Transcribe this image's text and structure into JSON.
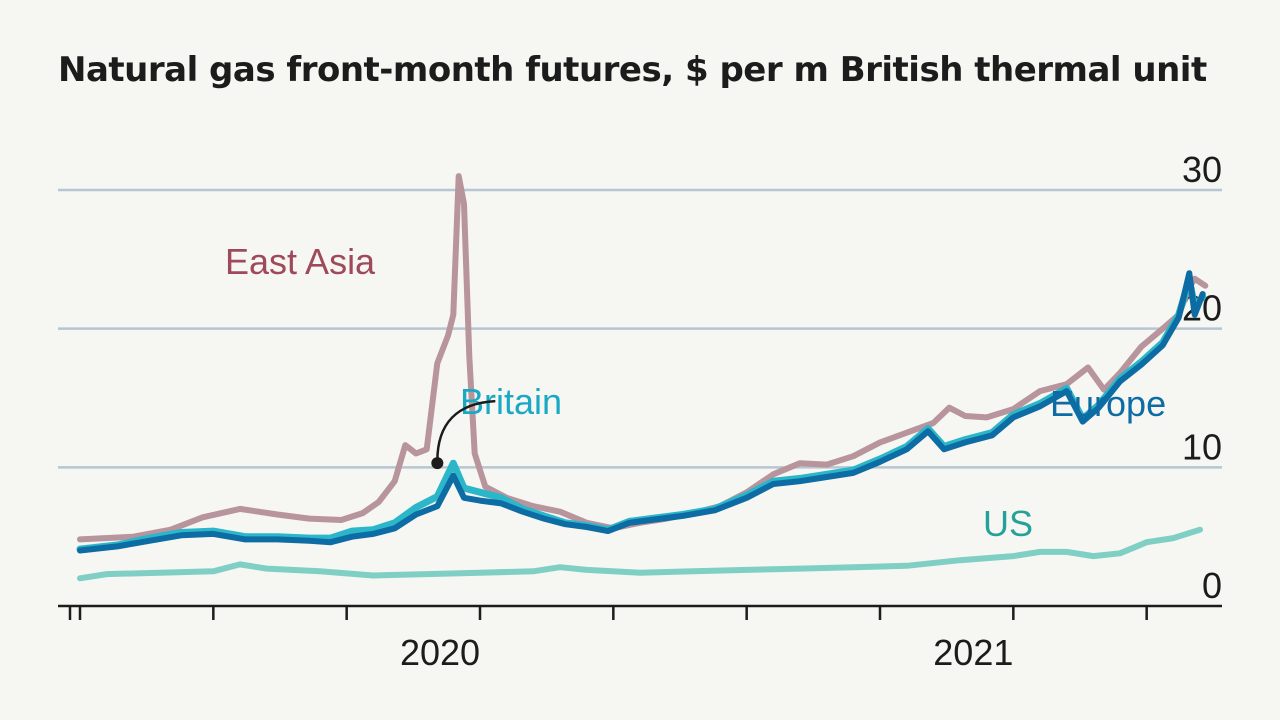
{
  "chart_data": {
    "type": "line",
    "title": "Natural gas front-month futures, $ per m British thermal unit",
    "xlabel": "",
    "ylabel": "",
    "ylim": [
      0,
      30
    ],
    "yticks": [
      "0",
      "10",
      "20",
      "30"
    ],
    "x_tick_labels": [
      "2020",
      "2021"
    ],
    "grid": true,
    "annotation": {
      "series": "Britain",
      "x": 2020.42,
      "y": 10.3
    },
    "colors": {
      "East Asia": "#b8949d",
      "Britain": "#2bb6c9",
      "Europe": "#0c6ca3",
      "US": "#7fcfc4"
    },
    "label_colors": {
      "East Asia": "#9e4a5b",
      "Britain": "#1aa9c4",
      "Europe": "#0c6ca3",
      "US": "#24a29a"
    },
    "series": [
      {
        "name": "East Asia",
        "points": [
          [
            2019.75,
            4.8
          ],
          [
            2019.85,
            5.0
          ],
          [
            2019.92,
            5.5
          ],
          [
            2019.98,
            6.4
          ],
          [
            2020.05,
            7.0
          ],
          [
            2020.12,
            6.6
          ],
          [
            2020.18,
            6.3
          ],
          [
            2020.24,
            6.2
          ],
          [
            2020.28,
            6.7
          ],
          [
            2020.31,
            7.5
          ],
          [
            2020.34,
            9.0
          ],
          [
            2020.36,
            11.6
          ],
          [
            2020.38,
            11.0
          ],
          [
            2020.4,
            11.3
          ],
          [
            2020.42,
            17.5
          ],
          [
            2020.44,
            19.5
          ],
          [
            2020.45,
            21
          ],
          [
            2020.46,
            31
          ],
          [
            2020.47,
            29
          ],
          [
            2020.48,
            18
          ],
          [
            2020.49,
            11
          ],
          [
            2020.51,
            8.6
          ],
          [
            2020.55,
            7.8
          ],
          [
            2020.6,
            7.2
          ],
          [
            2020.65,
            6.8
          ],
          [
            2020.7,
            6.0
          ],
          [
            2020.75,
            5.6
          ],
          [
            2020.8,
            6.0
          ],
          [
            2020.85,
            6.3
          ],
          [
            2020.9,
            6.7
          ],
          [
            2020.95,
            7.2
          ],
          [
            2021.0,
            8.2
          ],
          [
            2021.05,
            9.5
          ],
          [
            2021.1,
            10.3
          ],
          [
            2021.15,
            10.2
          ],
          [
            2021.2,
            10.8
          ],
          [
            2021.25,
            11.8
          ],
          [
            2021.3,
            12.5
          ],
          [
            2021.35,
            13.2
          ],
          [
            2021.38,
            14.3
          ],
          [
            2021.41,
            13.7
          ],
          [
            2021.45,
            13.6
          ],
          [
            2021.5,
            14.2
          ],
          [
            2021.55,
            15.5
          ],
          [
            2021.6,
            16.0
          ],
          [
            2021.64,
            17.2
          ],
          [
            2021.67,
            15.6
          ],
          [
            2021.7,
            16.8
          ],
          [
            2021.74,
            18.7
          ],
          [
            2021.78,
            20.0
          ],
          [
            2021.81,
            21.0
          ],
          [
            2021.83,
            23.0
          ],
          [
            2021.84,
            23.6
          ],
          [
            2021.86,
            23.1
          ]
        ]
      },
      {
        "name": "Britain",
        "points": [
          [
            2019.75,
            4.1
          ],
          [
            2019.82,
            4.4
          ],
          [
            2019.88,
            4.9
          ],
          [
            2019.94,
            5.3
          ],
          [
            2020.0,
            5.4
          ],
          [
            2020.06,
            5.0
          ],
          [
            2020.12,
            5.0
          ],
          [
            2020.18,
            4.9
          ],
          [
            2020.22,
            4.9
          ],
          [
            2020.26,
            5.4
          ],
          [
            2020.3,
            5.5
          ],
          [
            2020.34,
            6.0
          ],
          [
            2020.38,
            7.1
          ],
          [
            2020.42,
            7.9
          ],
          [
            2020.45,
            10.3
          ],
          [
            2020.47,
            8.5
          ],
          [
            2020.5,
            8.2
          ],
          [
            2020.54,
            7.8
          ],
          [
            2020.58,
            7.0
          ],
          [
            2020.62,
            6.5
          ],
          [
            2020.66,
            6.0
          ],
          [
            2020.7,
            5.8
          ],
          [
            2020.74,
            5.5
          ],
          [
            2020.78,
            6.1
          ],
          [
            2020.82,
            6.3
          ],
          [
            2020.88,
            6.6
          ],
          [
            2020.94,
            7.0
          ],
          [
            2021.0,
            8.0
          ],
          [
            2021.05,
            9.0
          ],
          [
            2021.1,
            9.2
          ],
          [
            2021.15,
            9.5
          ],
          [
            2021.2,
            9.8
          ],
          [
            2021.25,
            10.6
          ],
          [
            2021.3,
            11.5
          ],
          [
            2021.34,
            12.8
          ],
          [
            2021.37,
            11.5
          ],
          [
            2021.41,
            12.0
          ],
          [
            2021.46,
            12.5
          ],
          [
            2021.5,
            13.8
          ],
          [
            2021.55,
            14.6
          ],
          [
            2021.6,
            15.7
          ],
          [
            2021.63,
            13.5
          ],
          [
            2021.66,
            14.5
          ],
          [
            2021.7,
            16.4
          ],
          [
            2021.74,
            17.6
          ],
          [
            2021.78,
            19.0
          ],
          [
            2021.81,
            21.0
          ],
          [
            2021.83,
            23.5
          ],
          [
            2021.84,
            21.6
          ],
          [
            2021.855,
            22.3
          ]
        ]
      },
      {
        "name": "Europe",
        "points": [
          [
            2019.75,
            4.0
          ],
          [
            2019.82,
            4.3
          ],
          [
            2019.88,
            4.7
          ],
          [
            2019.94,
            5.1
          ],
          [
            2020.0,
            5.2
          ],
          [
            2020.06,
            4.8
          ],
          [
            2020.12,
            4.8
          ],
          [
            2020.18,
            4.7
          ],
          [
            2020.22,
            4.6
          ],
          [
            2020.26,
            5.0
          ],
          [
            2020.3,
            5.2
          ],
          [
            2020.34,
            5.6
          ],
          [
            2020.38,
            6.6
          ],
          [
            2020.42,
            7.2
          ],
          [
            2020.45,
            9.4
          ],
          [
            2020.47,
            7.8
          ],
          [
            2020.5,
            7.6
          ],
          [
            2020.54,
            7.4
          ],
          [
            2020.58,
            6.8
          ],
          [
            2020.62,
            6.3
          ],
          [
            2020.66,
            5.9
          ],
          [
            2020.7,
            5.7
          ],
          [
            2020.74,
            5.4
          ],
          [
            2020.78,
            6.0
          ],
          [
            2020.82,
            6.2
          ],
          [
            2020.88,
            6.5
          ],
          [
            2020.94,
            6.9
          ],
          [
            2021.0,
            7.8
          ],
          [
            2021.05,
            8.8
          ],
          [
            2021.1,
            9.0
          ],
          [
            2021.15,
            9.3
          ],
          [
            2021.2,
            9.6
          ],
          [
            2021.25,
            10.4
          ],
          [
            2021.3,
            11.3
          ],
          [
            2021.34,
            12.6
          ],
          [
            2021.37,
            11.3
          ],
          [
            2021.41,
            11.8
          ],
          [
            2021.46,
            12.3
          ],
          [
            2021.5,
            13.6
          ],
          [
            2021.55,
            14.4
          ],
          [
            2021.6,
            15.5
          ],
          [
            2021.63,
            13.3
          ],
          [
            2021.66,
            14.3
          ],
          [
            2021.7,
            16.2
          ],
          [
            2021.74,
            17.4
          ],
          [
            2021.78,
            18.8
          ],
          [
            2021.81,
            20.8
          ],
          [
            2021.83,
            24.0
          ],
          [
            2021.84,
            21.0
          ],
          [
            2021.855,
            22.5
          ]
        ]
      },
      {
        "name": "US",
        "points": [
          [
            2019.75,
            2.0
          ],
          [
            2019.8,
            2.3
          ],
          [
            2019.9,
            2.4
          ],
          [
            2020.0,
            2.5
          ],
          [
            2020.05,
            3.0
          ],
          [
            2020.1,
            2.7
          ],
          [
            2020.2,
            2.5
          ],
          [
            2020.3,
            2.2
          ],
          [
            2020.4,
            2.3
          ],
          [
            2020.5,
            2.4
          ],
          [
            2020.6,
            2.5
          ],
          [
            2020.65,
            2.8
          ],
          [
            2020.7,
            2.6
          ],
          [
            2020.8,
            2.4
          ],
          [
            2020.9,
            2.5
          ],
          [
            2021.0,
            2.6
          ],
          [
            2021.1,
            2.7
          ],
          [
            2021.2,
            2.8
          ],
          [
            2021.3,
            2.9
          ],
          [
            2021.4,
            3.3
          ],
          [
            2021.5,
            3.6
          ],
          [
            2021.55,
            3.9
          ],
          [
            2021.6,
            3.9
          ],
          [
            2021.65,
            3.6
          ],
          [
            2021.7,
            3.8
          ],
          [
            2021.75,
            4.6
          ],
          [
            2021.8,
            4.9
          ],
          [
            2021.85,
            5.5
          ]
        ]
      }
    ]
  }
}
